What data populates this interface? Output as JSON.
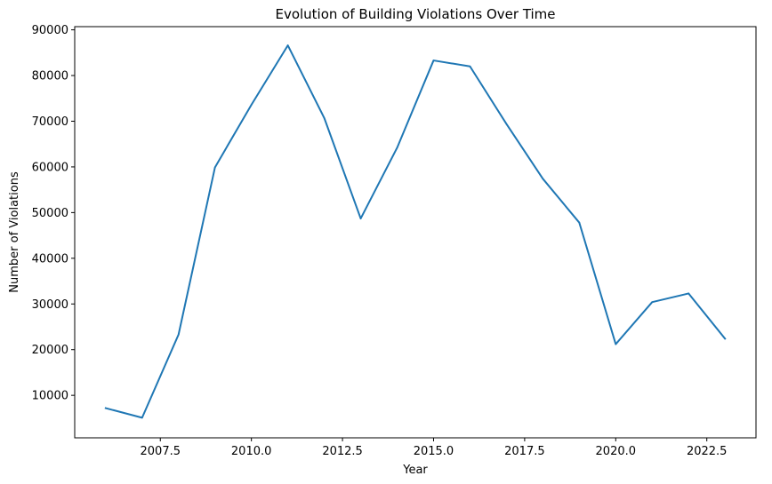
{
  "chart_data": {
    "type": "line",
    "title": "Evolution of Building Violations Over Time",
    "xlabel": "Year",
    "ylabel": "Number of Violations",
    "xlim": [
      2005.15,
      2023.85
    ],
    "ylim": [
      700,
      90700
    ],
    "xticks": [
      2007.5,
      2010.0,
      2012.5,
      2015.0,
      2017.5,
      2020.0,
      2022.5
    ],
    "xtick_labels": [
      "2007.5",
      "2010.0",
      "2012.5",
      "2015.0",
      "2017.5",
      "2020.0",
      "2022.5"
    ],
    "yticks": [
      10000,
      20000,
      30000,
      40000,
      50000,
      60000,
      70000,
      80000,
      90000
    ],
    "ytick_labels": [
      "10000",
      "20000",
      "30000",
      "40000",
      "50000",
      "60000",
      "70000",
      "80000",
      "90000"
    ],
    "grid": false,
    "series": [
      {
        "color": "#1f77b4",
        "x": [
          2006,
          2007,
          2008,
          2009,
          2010,
          2011,
          2012,
          2013,
          2014,
          2015,
          2016,
          2017,
          2018,
          2019,
          2020,
          2021,
          2022,
          2023
        ],
        "y": [
          7200,
          5100,
          23300,
          59900,
          73600,
          86600,
          70700,
          48700,
          64200,
          83300,
          82000,
          69400,
          57400,
          47800,
          21200,
          30400,
          32300,
          22400
        ]
      }
    ]
  }
}
